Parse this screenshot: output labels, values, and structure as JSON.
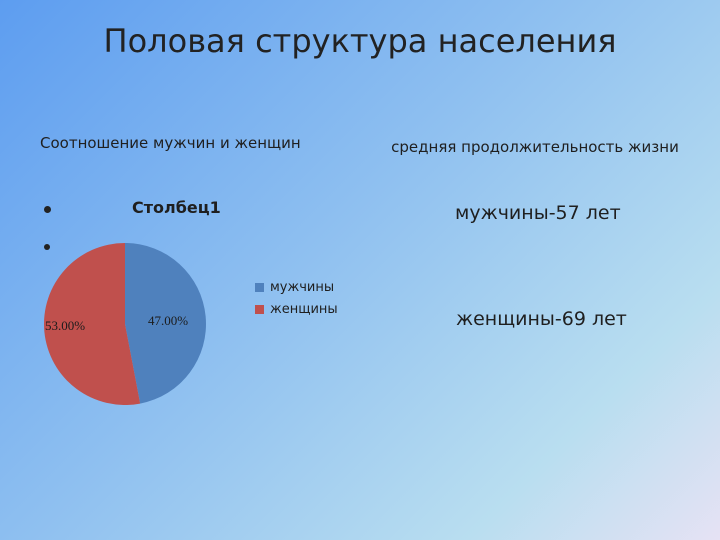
{
  "slide": {
    "title": "Половая структура населения"
  },
  "left_panel": {
    "heading": "Соотношение мужчин и женщин"
  },
  "right_panel": {
    "heading": "средняя продолжительность жизни",
    "men": "мужчины-57 лет",
    "women": "женщины-69 лет"
  },
  "chart_data": {
    "type": "pie",
    "title": "Столбец1",
    "categories": [
      "мужчины",
      "женщины"
    ],
    "values": [
      47.0,
      53.0
    ],
    "data_labels": [
      "47.00%",
      "53.00%"
    ],
    "colors": [
      "#4f81bd",
      "#c0504d"
    ],
    "legend_placement": "right"
  }
}
